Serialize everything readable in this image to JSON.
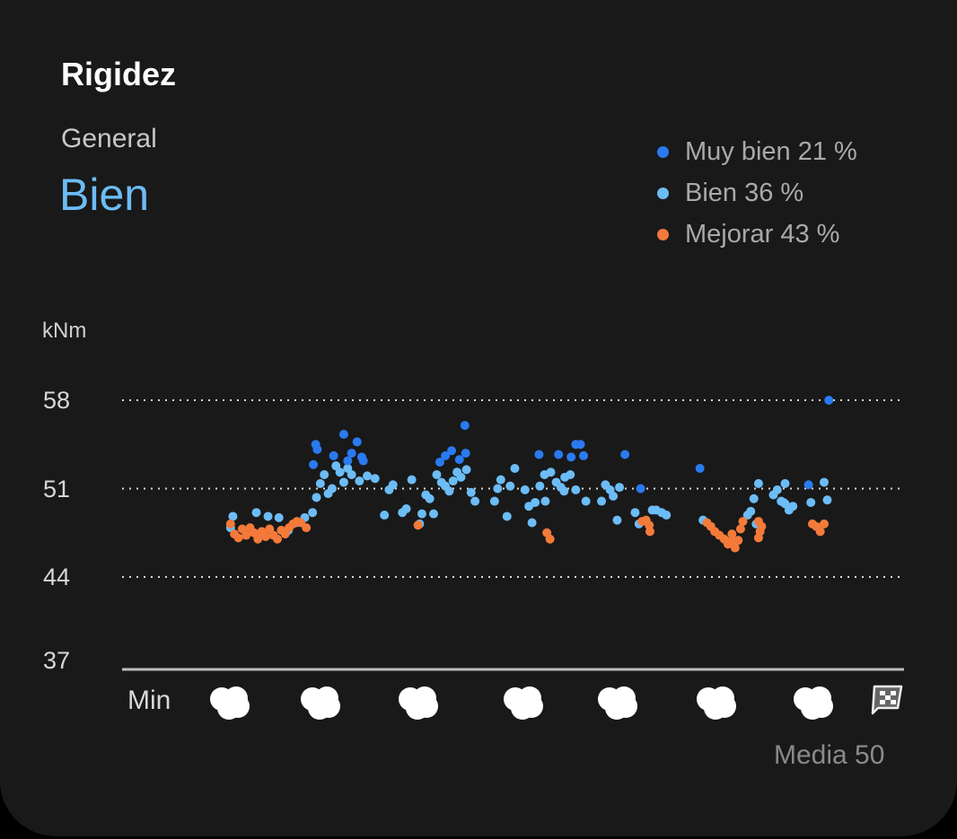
{
  "title": "Rigidez",
  "overall": {
    "label": "General",
    "rating": "Bien"
  },
  "footer": {
    "average": "Media 50"
  },
  "colors": {
    "muy_bien": "#2a7af0",
    "bien": "#6cbcf5",
    "mejorar": "#f47a3a"
  },
  "chart_data": {
    "type": "scatter",
    "title": "Rigidez",
    "ylabel": "kNm",
    "xlabel": "",
    "x_start_label": "Min",
    "x_end_icon": "checkered-flag-icon",
    "ylim": [
      37,
      58
    ],
    "xlim": [
      0,
      100
    ],
    "yticks": [
      "58",
      "51",
      "44",
      "37"
    ],
    "ytick_values": [
      58,
      51,
      44,
      37
    ],
    "grid": "dotted horizontal",
    "legend_position": "top-right",
    "legend": [
      {
        "name": "Muy bien",
        "percent": "21 %",
        "label": "Muy bien 21 %"
      },
      {
        "name": "Bien",
        "percent": "36 %",
        "label": "Bien 36 %"
      },
      {
        "name": "Mejorar",
        "percent": "43 %",
        "label": "Mejorar 43 %"
      }
    ],
    "series_order": [
      "muy_bien",
      "bien",
      "mejorar"
    ],
    "points": [
      [
        14,
        48.2,
        2
      ],
      [
        14.5,
        47.4,
        2
      ],
      [
        15,
        47.1,
        2
      ],
      [
        15.5,
        47.8,
        2
      ],
      [
        16,
        47.3,
        2
      ],
      [
        16.5,
        47.9,
        2
      ],
      [
        17,
        47.5,
        2
      ],
      [
        17.5,
        47.0,
        2
      ],
      [
        18,
        47.6,
        2
      ],
      [
        18.5,
        47.2,
        2
      ],
      [
        19,
        47.8,
        2
      ],
      [
        19.5,
        47.3,
        2
      ],
      [
        20,
        47.0,
        2
      ],
      [
        20.5,
        47.7,
        2
      ],
      [
        21,
        47.4,
        2
      ],
      [
        21.5,
        47.9,
        2
      ],
      [
        22,
        48.2,
        2
      ],
      [
        22.5,
        48.4,
        2
      ],
      [
        23,
        48.3,
        2
      ],
      [
        23.7,
        47.9,
        2
      ],
      [
        14,
        47.9,
        1
      ],
      [
        14.3,
        48.8,
        1
      ],
      [
        17.3,
        49.1,
        1
      ],
      [
        18.8,
        48.8,
        1
      ],
      [
        20.2,
        48.7,
        1
      ],
      [
        21.4,
        47.7,
        1
      ],
      [
        22.4,
        48.3,
        1
      ],
      [
        23.5,
        48.7,
        1
      ],
      [
        24.5,
        49.1,
        1
      ],
      [
        25,
        50.3,
        1
      ],
      [
        25.5,
        51.4,
        1
      ],
      [
        26,
        52.1,
        1
      ],
      [
        26.5,
        50.6,
        1
      ],
      [
        27,
        51.0,
        1
      ],
      [
        27.5,
        52.8,
        1
      ],
      [
        28,
        52.3,
        1
      ],
      [
        28.5,
        51.5,
        1
      ],
      [
        29,
        52.6,
        1
      ],
      [
        29.5,
        52.1,
        1
      ],
      [
        30.5,
        51.6,
        1
      ],
      [
        31.5,
        52.0,
        1
      ],
      [
        32.5,
        51.8,
        1
      ],
      [
        24.9,
        54.5,
        0
      ],
      [
        25.1,
        54.1,
        0
      ],
      [
        24.6,
        52.9,
        0
      ],
      [
        27.2,
        53.6,
        0
      ],
      [
        28.5,
        55.3,
        0
      ],
      [
        29.5,
        53.8,
        0
      ],
      [
        30.2,
        54.7,
        0
      ],
      [
        30.8,
        53.5,
        0
      ],
      [
        29,
        53.2,
        0
      ],
      [
        31,
        53.2,
        0
      ],
      [
        33.7,
        48.9,
        1
      ],
      [
        34.3,
        50.9,
        1
      ],
      [
        34.8,
        51.3,
        1
      ],
      [
        36,
        49.1,
        1
      ],
      [
        36.5,
        49.4,
        1
      ],
      [
        37.2,
        51.7,
        1
      ],
      [
        38,
        48.1,
        2
      ],
      [
        38.2,
        48.2,
        1
      ],
      [
        38.5,
        49.0,
        1
      ],
      [
        39,
        50.5,
        1
      ],
      [
        39.5,
        50.2,
        1
      ],
      [
        40,
        49.0,
        1
      ],
      [
        40.4,
        52.1,
        1
      ],
      [
        41,
        51.5,
        1
      ],
      [
        41.5,
        51.2,
        1
      ],
      [
        42,
        50.8,
        1
      ],
      [
        42.5,
        51.6,
        1
      ],
      [
        43,
        52.3,
        1
      ],
      [
        43.5,
        51.9,
        1
      ],
      [
        44.2,
        52.5,
        1
      ],
      [
        44.8,
        50.7,
        1
      ],
      [
        45.3,
        50.0,
        1
      ],
      [
        40.8,
        53.1,
        0
      ],
      [
        41.5,
        53.6,
        0
      ],
      [
        42.3,
        54.0,
        0
      ],
      [
        43.3,
        53.3,
        0
      ],
      [
        44.1,
        53.8,
        0
      ],
      [
        44.0,
        56.0,
        0
      ],
      [
        47.8,
        50.0,
        1
      ],
      [
        48.2,
        51.0,
        1
      ],
      [
        48.6,
        51.7,
        1
      ],
      [
        49.4,
        48.8,
        1
      ],
      [
        49.8,
        51.2,
        1
      ],
      [
        50.4,
        52.6,
        1
      ],
      [
        51.7,
        50.9,
        1
      ],
      [
        52.2,
        49.6,
        1
      ],
      [
        52.6,
        48.3,
        1
      ],
      [
        53,
        49.9,
        1
      ],
      [
        53.6,
        51.2,
        1
      ],
      [
        54.2,
        52.1,
        1
      ],
      [
        54.3,
        50.0,
        1
      ],
      [
        54.5,
        47.5,
        2
      ],
      [
        54.9,
        47.0,
        2
      ],
      [
        53.5,
        53.7,
        0
      ],
      [
        55,
        52.3,
        1
      ],
      [
        55.7,
        51.5,
        1
      ],
      [
        56.3,
        51.1,
        1
      ],
      [
        56.8,
        51.9,
        1
      ],
      [
        57.5,
        52.1,
        1
      ],
      [
        58.2,
        50.9,
        1
      ],
      [
        59.5,
        50.0,
        1
      ],
      [
        56.7,
        50.8,
        1
      ],
      [
        56,
        53.7,
        0
      ],
      [
        57.6,
        53.5,
        0
      ],
      [
        58.2,
        54.5,
        0
      ],
      [
        58.8,
        54.5,
        0
      ],
      [
        59.2,
        53.6,
        0
      ],
      [
        61.5,
        50.0,
        1
      ],
      [
        62,
        51.3,
        1
      ],
      [
        62.6,
        50.9,
        1
      ],
      [
        63,
        50.4,
        1
      ],
      [
        63.5,
        48.5,
        1
      ],
      [
        63.8,
        51.1,
        1
      ],
      [
        64.5,
        53.7,
        0
      ],
      [
        66.5,
        51.0,
        0
      ],
      [
        65.8,
        49.1,
        1
      ],
      [
        66.3,
        48.2,
        1
      ],
      [
        66.7,
        48.4,
        2
      ],
      [
        67.2,
        48.5,
        2
      ],
      [
        67.6,
        48.1,
        2
      ],
      [
        67.7,
        47.6,
        2
      ],
      [
        68,
        49.3,
        1
      ],
      [
        68.5,
        49.3,
        1
      ],
      [
        69.2,
        49.1,
        1
      ],
      [
        69.8,
        48.9,
        1
      ],
      [
        74.1,
        52.6,
        0
      ],
      [
        74.5,
        48.5,
        1
      ],
      [
        75,
        48.3,
        2
      ],
      [
        75.5,
        48.0,
        2
      ],
      [
        76,
        47.6,
        2
      ],
      [
        76.6,
        47.3,
        2
      ],
      [
        77.2,
        47.0,
        2
      ],
      [
        77.7,
        46.6,
        2
      ],
      [
        78.2,
        46.9,
        2
      ],
      [
        78.6,
        46.3,
        2
      ],
      [
        79,
        46.9,
        2
      ],
      [
        78.2,
        47.4,
        2
      ],
      [
        79.3,
        47.8,
        2
      ],
      [
        79.6,
        48.4,
        2
      ],
      [
        80.2,
        48.9,
        1
      ],
      [
        80.6,
        49.2,
        1
      ],
      [
        81,
        50.2,
        1
      ],
      [
        81.6,
        51.4,
        1
      ],
      [
        81.3,
        48.2,
        1
      ],
      [
        81.6,
        48.4,
        2
      ],
      [
        82,
        48.0,
        2
      ],
      [
        81.8,
        47.6,
        2
      ],
      [
        81.6,
        47.1,
        2
      ],
      [
        83.5,
        50.5,
        1
      ],
      [
        84,
        50.9,
        1
      ],
      [
        84.5,
        50.0,
        1
      ],
      [
        85,
        51.4,
        1
      ],
      [
        85,
        49.8,
        1
      ],
      [
        85.5,
        49.3,
        1
      ],
      [
        86,
        49.6,
        1
      ],
      [
        84.8,
        49.9,
        1
      ],
      [
        88,
        51.3,
        0
      ],
      [
        88.3,
        49.9,
        1
      ],
      [
        88.5,
        48.2,
        2
      ],
      [
        89,
        48.0,
        2
      ],
      [
        89.5,
        47.6,
        2
      ],
      [
        90,
        48.2,
        2
      ],
      [
        90,
        51.5,
        1
      ],
      [
        90.4,
        50.1,
        1
      ],
      [
        90.6,
        58.0,
        0
      ]
    ]
  }
}
